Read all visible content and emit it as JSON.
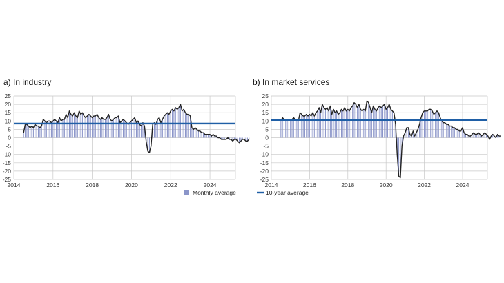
{
  "chart_data": [
    {
      "type": "bar",
      "title": "a)  In industry",
      "xlim": [
        2014,
        2025.3
      ],
      "ylim": [
        -25,
        25
      ],
      "yticks": [
        25,
        20,
        15,
        10,
        5,
        0,
        -5,
        -10,
        -15,
        -20,
        -25
      ],
      "xticks": [
        "2014",
        "2016",
        "2018",
        "2020",
        "2022",
        "2024"
      ],
      "grid": true,
      "series": [
        {
          "name": "Monthly average",
          "x_start": 2014.5,
          "x_step": 0.0833,
          "values": [
            3,
            8,
            8,
            7,
            6,
            7,
            6,
            8,
            7,
            7,
            6,
            7,
            11,
            10,
            9,
            10,
            10,
            9,
            10,
            11,
            10,
            9,
            12,
            10,
            11,
            11,
            14,
            12,
            16,
            14,
            13,
            15,
            13,
            12,
            16,
            14,
            15,
            13,
            12,
            13,
            14,
            13,
            12,
            13,
            13,
            14,
            12,
            11,
            12,
            11,
            11,
            12,
            14,
            11,
            10,
            11,
            12,
            12,
            13,
            9,
            10,
            11,
            10,
            9,
            8,
            9,
            10,
            11,
            12,
            9,
            10,
            8,
            7,
            9,
            7,
            -2,
            -8,
            -9,
            -5,
            8,
            9,
            8,
            11,
            12,
            9,
            11,
            13,
            14,
            15,
            14,
            16,
            17,
            16,
            18,
            17,
            18,
            20,
            16,
            17,
            15,
            14,
            14,
            13,
            6,
            5,
            6,
            5,
            4,
            4,
            3,
            3,
            2,
            2,
            2,
            2,
            1,
            2,
            1,
            1,
            0,
            0,
            -1,
            -1,
            -1,
            -1,
            0,
            -1,
            -1,
            -2,
            -1,
            -1,
            -2,
            -3,
            -2,
            -1,
            -1,
            -2,
            -2,
            -1
          ]
        },
        {
          "name": "10-year average",
          "value": 8.5
        }
      ],
      "legend": "Monthly average"
    },
    {
      "type": "bar",
      "title": "b)  In market services",
      "xlim": [
        2014,
        2025.3
      ],
      "ylim": [
        -25,
        25
      ],
      "yticks": [
        25,
        20,
        15,
        10,
        5,
        0,
        -5,
        -10,
        -15,
        -20,
        -25
      ],
      "xticks": [
        "2014",
        "2016",
        "2018",
        "2020",
        "2022",
        "2024"
      ],
      "grid": true,
      "series": [
        {
          "name": "Monthly average",
          "x_start": 2014.5,
          "x_step": 0.0833,
          "values": [
            10,
            12,
            11,
            10,
            10,
            11,
            10,
            11,
            12,
            11,
            10,
            10,
            15,
            14,
            13,
            13,
            14,
            13,
            14,
            13,
            15,
            13,
            15,
            16,
            18,
            15,
            20,
            18,
            17,
            18,
            16,
            19,
            14,
            17,
            15,
            16,
            14,
            15,
            17,
            16,
            18,
            16,
            17,
            16,
            18,
            19,
            21,
            20,
            18,
            20,
            17,
            16,
            17,
            16,
            22,
            21,
            18,
            15,
            19,
            17,
            16,
            18,
            19,
            18,
            19,
            20,
            17,
            18,
            20,
            17,
            16,
            15,
            8,
            -10,
            -23,
            -24,
            -5,
            1,
            3,
            6,
            6,
            2,
            1,
            4,
            1,
            3,
            5,
            8,
            12,
            15,
            16,
            16,
            16,
            17,
            17,
            16,
            14,
            15,
            16,
            15,
            12,
            10,
            9,
            9,
            8,
            8,
            7,
            7,
            6,
            6,
            5,
            5,
            4,
            4,
            6,
            3,
            2,
            2,
            1,
            1,
            2,
            3,
            2,
            2,
            3,
            2,
            1,
            2,
            3,
            2,
            1,
            -1,
            1,
            2,
            1,
            0,
            2,
            1,
            1
          ]
        },
        {
          "name": "10-year average",
          "value": 10.5
        }
      ],
      "legend": "10-year average"
    }
  ],
  "colors": {
    "bar": "#8b95c9",
    "line": "#222222",
    "average": "#1f5fa6",
    "grid": "#c8c8c8"
  }
}
